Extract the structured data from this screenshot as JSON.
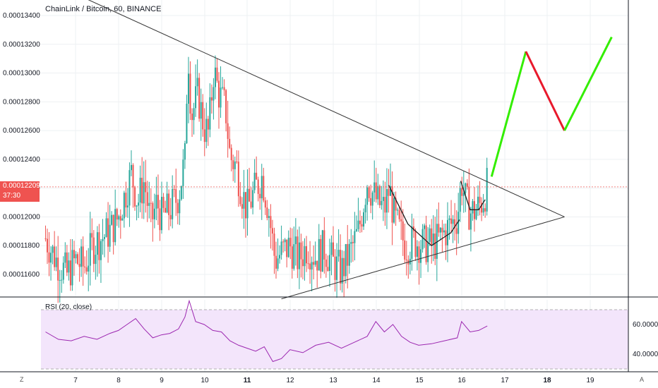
{
  "title": "ChainLink / Bitcoin, 60, BINANCE",
  "current_price": "0.00012209",
  "countdown": "37:30",
  "rsi_title": "RSI (20, close)",
  "left_corner": "Z",
  "right_corner": "A",
  "colors": {
    "up": "#26a69a",
    "down": "#ef5350",
    "rsi_line": "#9c27b0",
    "rsi_band": "#f3e5fb",
    "forecast_up": "#33ee00",
    "forecast_down": "#e8192c",
    "grid": "#eef0f3"
  },
  "chart_data": [
    {
      "type": "candlestick",
      "title": "ChainLink / Bitcoin, 60, BINANCE",
      "x_ticks": [
        "7",
        "8",
        "9",
        "10",
        "11",
        "12",
        "13",
        "14",
        "15",
        "16",
        "17",
        "18",
        "19"
      ],
      "y_ticks": [
        "0.00011600",
        "0.00011800",
        "0.00012000",
        "0.00012200",
        "0.00012400",
        "0.00012600",
        "0.00012800",
        "0.00013000",
        "0.00013200",
        "0.00013400"
      ],
      "ylim": [
        0.000114,
        0.0001346
      ],
      "xlim": [
        6.3,
        20.5
      ],
      "current_price": 0.00012209,
      "price_path": [
        [
          6.3,
          0.0001185
        ],
        [
          6.55,
          0.000117
        ],
        [
          6.8,
          0.000116
        ],
        [
          7.0,
          0.000117
        ],
        [
          7.2,
          0.0001165
        ],
        [
          7.4,
          0.000118
        ],
        [
          7.6,
          0.0001185
        ],
        [
          7.8,
          0.000119
        ],
        [
          8.0,
          0.00012
        ],
        [
          8.15,
          0.0001215
        ],
        [
          8.3,
          0.000123
        ],
        [
          8.45,
          0.000121
        ],
        [
          8.6,
          0.0001225
        ],
        [
          8.75,
          0.0001195
        ],
        [
          8.9,
          0.000121
        ],
        [
          9.0,
          0.00012
        ],
        [
          9.2,
          0.0001205
        ],
        [
          9.4,
          0.0001215
        ],
        [
          9.55,
          0.000124
        ],
        [
          9.62,
          0.0001318
        ],
        [
          9.7,
          0.000127
        ],
        [
          9.85,
          0.0001285
        ],
        [
          10.0,
          0.0001262
        ],
        [
          10.1,
          0.0001258
        ],
        [
          10.22,
          0.0001302
        ],
        [
          10.35,
          0.0001285
        ],
        [
          10.5,
          0.0001275
        ],
        [
          10.6,
          0.0001242
        ],
        [
          10.75,
          0.0001235
        ],
        [
          10.9,
          0.0001215
        ],
        [
          11.0,
          0.0001205
        ],
        [
          11.2,
          0.000122
        ],
        [
          11.35,
          0.0001228
        ],
        [
          11.5,
          0.0001205
        ],
        [
          11.65,
          0.000117
        ],
        [
          11.8,
          0.0001175
        ],
        [
          12.0,
          0.000118
        ],
        [
          12.2,
          0.000117
        ],
        [
          12.4,
          0.000118
        ],
        [
          12.6,
          0.0001172
        ],
        [
          12.8,
          0.0001178
        ],
        [
          13.0,
          0.0001168
        ],
        [
          13.2,
          0.0001162
        ],
        [
          13.4,
          0.0001175
        ],
        [
          13.6,
          0.000119
        ],
        [
          13.8,
          0.0001225
        ],
        [
          13.9,
          0.0001218
        ],
        [
          14.05,
          0.000121
        ],
        [
          14.2,
          0.0001205
        ],
        [
          14.32,
          0.000122
        ],
        [
          14.42,
          0.00012
        ],
        [
          14.55,
          0.000119
        ],
        [
          14.7,
          0.000118
        ],
        [
          14.9,
          0.0001183
        ],
        [
          15.1,
          0.0001181
        ],
        [
          15.3,
          0.000118
        ],
        [
          15.5,
          0.0001185
        ],
        [
          15.7,
          0.0001193
        ],
        [
          15.9,
          0.00012
        ],
        [
          16.0,
          0.0001225
        ],
        [
          16.1,
          0.000121
        ],
        [
          16.2,
          0.0001203
        ],
        [
          16.35,
          0.0001205
        ],
        [
          16.5,
          0.0001212
        ],
        [
          16.6,
          0.0001222
        ]
      ],
      "trendlines": [
        {
          "name": "upper",
          "points": [
            [
              7.0,
              0.0001355
            ],
            [
              18.4,
              0.00012
            ]
          ]
        },
        {
          "name": "lower",
          "points": [
            [
              11.8,
              0.0001143
            ],
            [
              18.4,
              0.00012
            ]
          ]
        }
      ],
      "annotations": [
        {
          "type": "cup-arc",
          "points": [
            [
              14.3,
              0.0001222
            ],
            [
              14.75,
              0.0001195
            ],
            [
              15.3,
              0.000118
            ],
            [
              15.75,
              0.0001189
            ],
            [
              15.95,
              0.0001198
            ]
          ]
        },
        {
          "type": "cup-arc",
          "points": [
            [
              15.98,
              0.0001225
            ],
            [
              16.2,
              0.0001205
            ],
            [
              16.4,
              0.0001205
            ],
            [
              16.55,
              0.0001212
            ]
          ]
        }
      ],
      "forecast": [
        {
          "direction": "up",
          "points": [
            [
              16.7,
              0.0001228
            ],
            [
              17.5,
              0.0001315
            ]
          ]
        },
        {
          "direction": "down",
          "points": [
            [
              17.5,
              0.0001315
            ],
            [
              18.4,
              0.000126
            ]
          ]
        },
        {
          "direction": "up",
          "points": [
            [
              18.4,
              0.000126
            ],
            [
              19.5,
              0.0001325
            ]
          ]
        }
      ]
    },
    {
      "type": "line",
      "title": "RSI (20, close)",
      "y_ticks": [
        "40.0000",
        "60.0000"
      ],
      "ylim": [
        25,
        80
      ],
      "bands": [
        30,
        70
      ],
      "x_ticks": [
        "7",
        "8",
        "9",
        "10",
        "11",
        "12",
        "13",
        "14",
        "15",
        "16",
        "17",
        "18",
        "19"
      ],
      "x": [
        6.3,
        6.6,
        6.9,
        7.2,
        7.5,
        7.8,
        8.0,
        8.2,
        8.4,
        8.6,
        8.8,
        9.0,
        9.2,
        9.4,
        9.55,
        9.65,
        9.8,
        10.0,
        10.2,
        10.4,
        10.6,
        10.8,
        11.0,
        11.2,
        11.4,
        11.6,
        11.8,
        12.0,
        12.3,
        12.6,
        12.9,
        13.2,
        13.5,
        13.8,
        14.0,
        14.2,
        14.4,
        14.6,
        14.8,
        15.0,
        15.3,
        15.6,
        15.9,
        16.0,
        16.2,
        16.4,
        16.6
      ],
      "values": [
        55,
        50,
        49,
        52,
        50,
        54,
        56,
        60,
        64,
        57,
        51,
        53,
        54,
        57,
        65,
        76,
        62,
        60,
        56,
        55,
        49,
        46,
        44,
        42,
        45,
        35,
        37,
        43,
        41,
        46,
        48,
        44,
        48,
        52,
        62,
        55,
        60,
        52,
        48,
        46,
        47,
        49,
        51,
        62,
        55,
        56,
        59
      ]
    }
  ]
}
